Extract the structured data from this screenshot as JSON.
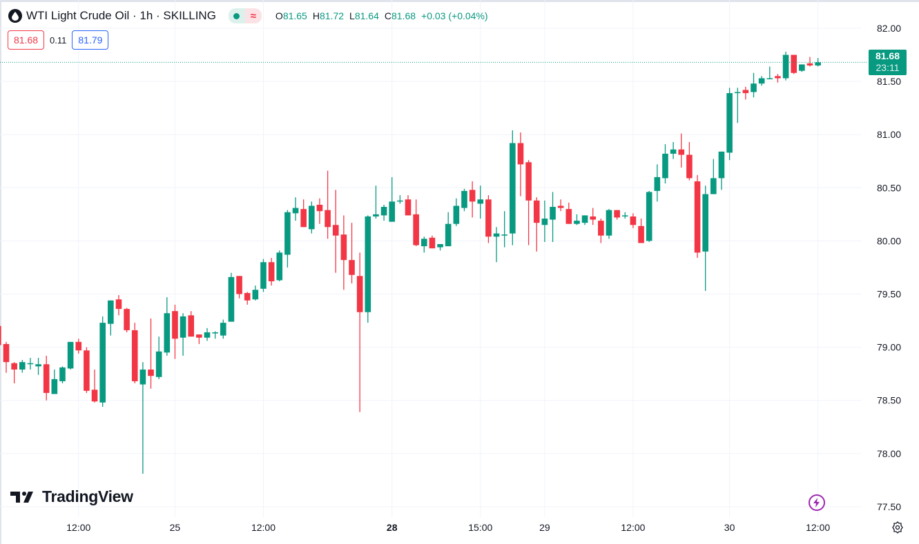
{
  "header": {
    "title": "WTI Light Crude Oil · 1h · SKILLING",
    "ohlc": {
      "o_label": "O",
      "o": "81.65",
      "h_label": "H",
      "h": "81.72",
      "l_label": "L",
      "l": "81.64",
      "c_label": "C",
      "c": "81.68",
      "change": "+0.03 (+0.04%)"
    },
    "sell_price": "81.68",
    "spread": "0.11",
    "buy_price": "81.79"
  },
  "price_badge": {
    "price": "81.68",
    "countdown": "23:11"
  },
  "watermark": "TradingView",
  "colors": {
    "up": "#089981",
    "down": "#F23645",
    "grid": "#f0f3fa",
    "text": "#131722"
  },
  "chart_data": {
    "type": "candlestick",
    "title": "WTI Light Crude Oil · 1h · SKILLING",
    "ylim": [
      77.35,
      82.1
    ],
    "yticks": [
      "82.00",
      "81.50",
      "81.00",
      "80.50",
      "80.00",
      "79.50",
      "79.00",
      "78.50",
      "78.00",
      "77.50"
    ],
    "xticks": [
      {
        "index": 10,
        "label": "12:00"
      },
      {
        "index": 22,
        "label": "25"
      },
      {
        "index": 33,
        "label": "12:00"
      },
      {
        "index": 49,
        "label": "28",
        "bold": true
      },
      {
        "index": 60,
        "label": "15:00"
      },
      {
        "index": 68,
        "label": "29"
      },
      {
        "index": 79,
        "label": "12:00"
      },
      {
        "index": 91,
        "label": "30"
      },
      {
        "index": 102,
        "label": "12:00"
      }
    ],
    "last_price": 81.68,
    "candles_ohlc": [
      [
        79.2,
        79.2,
        79.02,
        79.02
      ],
      [
        79.03,
        79.05,
        78.76,
        78.86
      ],
      [
        78.85,
        78.86,
        78.66,
        78.79
      ],
      [
        78.79,
        78.88,
        78.76,
        78.86
      ],
      [
        78.85,
        78.9,
        78.79,
        78.85
      ],
      [
        78.82,
        78.9,
        78.74,
        78.84
      ],
      [
        78.84,
        78.92,
        78.5,
        78.57
      ],
      [
        78.56,
        78.79,
        78.56,
        78.7
      ],
      [
        78.68,
        78.82,
        78.66,
        78.81
      ],
      [
        78.8,
        79.05,
        78.79,
        79.05
      ],
      [
        79.05,
        79.08,
        78.94,
        78.97
      ],
      [
        78.97,
        79.0,
        78.57,
        78.59
      ],
      [
        78.6,
        78.79,
        78.48,
        78.49
      ],
      [
        78.48,
        79.29,
        78.44,
        79.23
      ],
      [
        79.22,
        79.44,
        79.11,
        79.44
      ],
      [
        79.45,
        79.49,
        79.3,
        79.36
      ],
      [
        79.36,
        79.37,
        79.14,
        79.16
      ],
      [
        79.16,
        79.23,
        78.66,
        78.68
      ],
      [
        78.65,
        78.86,
        77.81,
        78.79
      ],
      [
        78.79,
        79.27,
        78.61,
        78.73
      ],
      [
        78.72,
        79.1,
        78.7,
        78.96
      ],
      [
        78.95,
        79.47,
        78.92,
        79.32
      ],
      [
        79.34,
        79.4,
        78.89,
        79.08
      ],
      [
        79.09,
        79.32,
        78.92,
        79.29
      ],
      [
        79.3,
        79.34,
        79.1,
        79.1
      ],
      [
        79.12,
        79.12,
        79.03,
        79.09
      ],
      [
        79.09,
        79.18,
        79.06,
        79.14
      ],
      [
        79.13,
        79.15,
        79.08,
        79.14
      ],
      [
        79.11,
        79.26,
        79.08,
        79.23
      ],
      [
        79.24,
        79.7,
        79.24,
        79.66
      ],
      [
        79.67,
        79.67,
        79.46,
        79.5
      ],
      [
        79.51,
        79.52,
        79.4,
        79.44
      ],
      [
        79.45,
        79.58,
        79.44,
        79.54
      ],
      [
        79.55,
        79.83,
        79.52,
        79.8
      ],
      [
        79.8,
        79.84,
        79.58,
        79.62
      ],
      [
        79.63,
        79.91,
        79.62,
        79.89
      ],
      [
        79.87,
        80.29,
        79.75,
        80.27
      ],
      [
        80.26,
        80.41,
        80.19,
        80.31
      ],
      [
        80.3,
        80.39,
        80.13,
        80.13
      ],
      [
        80.11,
        80.37,
        80.07,
        80.33
      ],
      [
        80.34,
        80.4,
        80.16,
        80.28
      ],
      [
        80.29,
        80.66,
        80.02,
        80.13
      ],
      [
        80.15,
        80.48,
        79.7,
        80.05
      ],
      [
        80.06,
        80.24,
        79.54,
        79.82
      ],
      [
        79.82,
        80.17,
        79.6,
        79.68
      ],
      [
        79.67,
        79.89,
        78.39,
        79.33
      ],
      [
        79.33,
        80.24,
        79.23,
        80.23
      ],
      [
        80.23,
        80.52,
        80.21,
        80.25
      ],
      [
        80.24,
        80.34,
        80.19,
        80.32
      ],
      [
        80.18,
        80.6,
        80.18,
        80.37
      ],
      [
        80.37,
        80.43,
        80.35,
        80.38
      ],
      [
        80.39,
        80.43,
        80.24,
        80.24
      ],
      [
        80.25,
        80.39,
        79.95,
        79.96
      ],
      [
        79.95,
        80.04,
        79.89,
        80.02
      ],
      [
        80.03,
        80.05,
        79.93,
        79.93
      ],
      [
        79.94,
        79.97,
        79.91,
        79.97
      ],
      [
        79.95,
        80.27,
        79.95,
        80.16
      ],
      [
        80.16,
        80.4,
        80.14,
        80.33
      ],
      [
        80.31,
        80.49,
        80.28,
        80.47
      ],
      [
        80.48,
        80.56,
        80.22,
        80.37
      ],
      [
        80.35,
        80.52,
        80.21,
        80.39
      ],
      [
        80.39,
        80.43,
        79.98,
        80.04
      ],
      [
        80.04,
        80.13,
        79.8,
        80.07
      ],
      [
        80.05,
        80.28,
        79.94,
        80.06
      ],
      [
        80.07,
        81.04,
        79.96,
        80.92
      ],
      [
        80.92,
        81.02,
        80.42,
        80.72
      ],
      [
        80.74,
        80.76,
        79.96,
        80.38
      ],
      [
        80.38,
        80.41,
        79.9,
        80.17
      ],
      [
        80.15,
        80.38,
        79.99,
        80.21
      ],
      [
        80.2,
        80.46,
        79.99,
        80.32
      ],
      [
        80.33,
        80.39,
        80.28,
        80.31
      ],
      [
        80.3,
        80.36,
        80.16,
        80.16
      ],
      [
        80.16,
        80.25,
        80.15,
        80.19
      ],
      [
        80.17,
        80.24,
        80.15,
        80.24
      ],
      [
        80.23,
        80.31,
        80.15,
        80.2
      ],
      [
        80.19,
        80.21,
        79.98,
        80.05
      ],
      [
        80.05,
        80.3,
        80.02,
        80.29
      ],
      [
        80.29,
        80.29,
        80.2,
        80.22
      ],
      [
        80.23,
        80.27,
        80.21,
        80.24
      ],
      [
        80.23,
        80.26,
        80.12,
        80.15
      ],
      [
        80.14,
        80.21,
        79.98,
        79.98
      ],
      [
        80.0,
        80.47,
        79.99,
        80.46
      ],
      [
        80.47,
        80.72,
        80.37,
        80.6
      ],
      [
        80.59,
        80.91,
        80.54,
        80.82
      ],
      [
        80.82,
        80.93,
        80.77,
        80.86
      ],
      [
        80.86,
        81.01,
        80.69,
        80.81
      ],
      [
        80.81,
        80.93,
        80.57,
        80.59
      ],
      [
        80.56,
        80.62,
        79.84,
        79.89
      ],
      [
        79.9,
        80.52,
        79.53,
        80.44
      ],
      [
        80.44,
        80.77,
        80.44,
        80.59
      ],
      [
        80.59,
        80.84,
        80.48,
        80.84
      ],
      [
        80.83,
        81.44,
        80.76,
        81.39
      ],
      [
        81.39,
        81.44,
        81.11,
        81.4
      ],
      [
        81.42,
        81.45,
        81.33,
        81.39
      ],
      [
        81.4,
        81.58,
        81.35,
        81.48
      ],
      [
        81.48,
        81.55,
        81.46,
        81.53
      ],
      [
        81.52,
        81.64,
        81.52,
        81.53
      ],
      [
        81.55,
        81.57,
        81.49,
        81.53
      ],
      [
        81.53,
        81.78,
        81.51,
        81.75
      ],
      [
        81.75,
        81.75,
        81.57,
        81.58
      ],
      [
        81.6,
        81.66,
        81.59,
        81.66
      ],
      [
        81.67,
        81.73,
        81.64,
        81.65
      ],
      [
        81.65,
        81.72,
        81.64,
        81.68
      ]
    ]
  }
}
